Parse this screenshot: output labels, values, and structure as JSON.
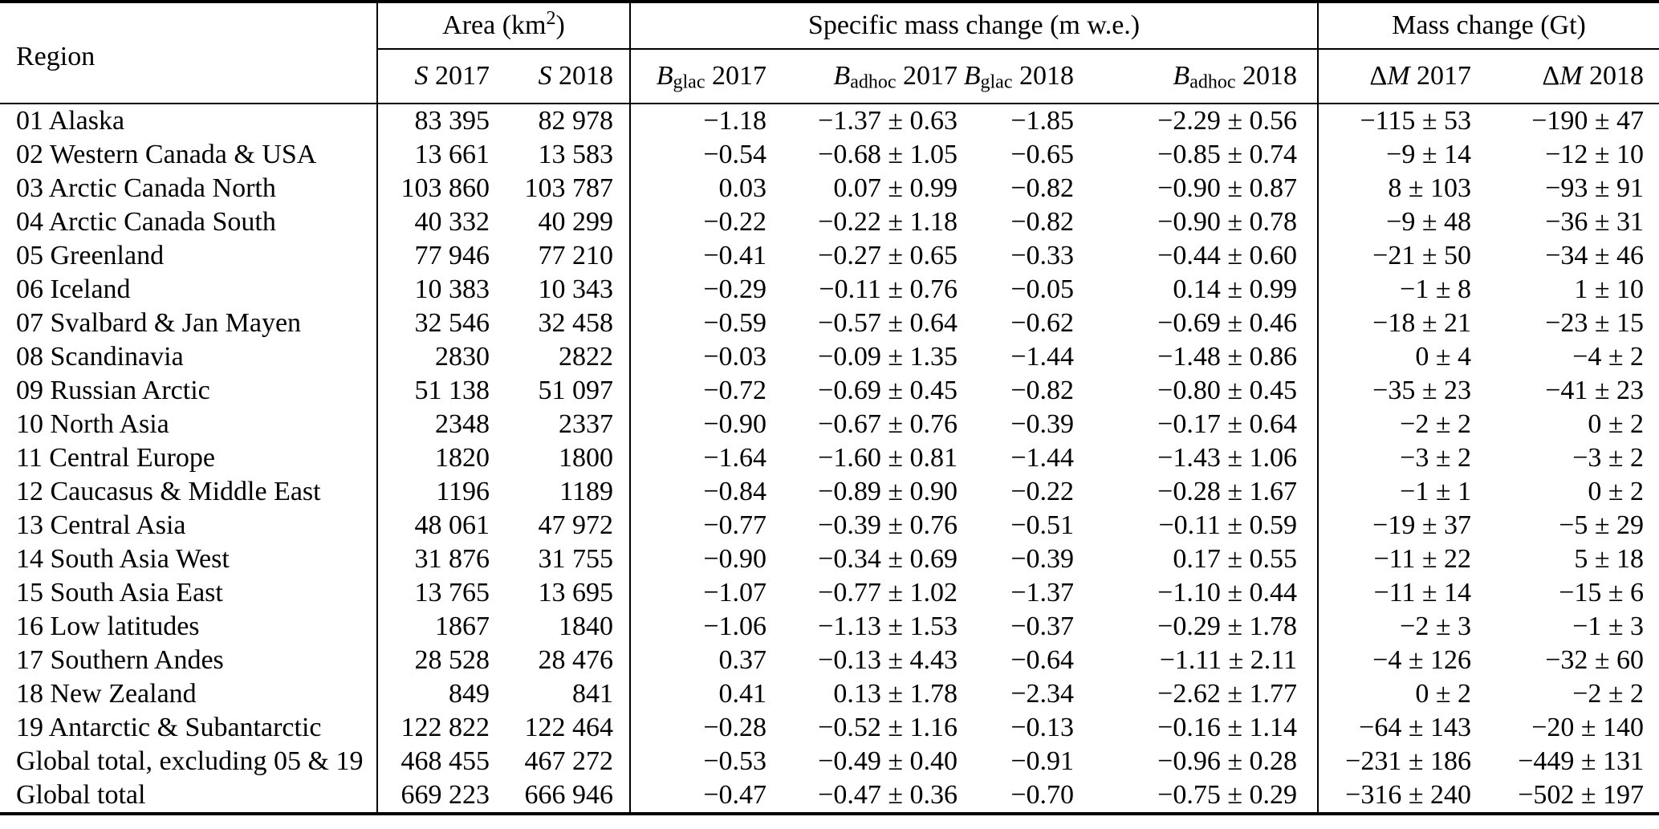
{
  "header": {
    "region": "Region",
    "area_pre": "Area (km",
    "area_sup": "2",
    "area_post": ")",
    "specific": "Specific mass change (m w.e.)",
    "mass": "Mass change (Gt)",
    "cols": [
      {
        "prefix": "",
        "main": "S",
        "sub": "",
        "year": " 2017"
      },
      {
        "prefix": "",
        "main": "S",
        "sub": "",
        "year": " 2018"
      },
      {
        "prefix": "",
        "main": "B",
        "sub": "glac",
        "year": " 2017"
      },
      {
        "prefix": "",
        "main": "B",
        "sub": "adhoc",
        "year": " 2017"
      },
      {
        "prefix": "",
        "main": "B",
        "sub": "glac",
        "year": " 2018"
      },
      {
        "prefix": "",
        "main": "B",
        "sub": "adhoc",
        "year": " 2018"
      },
      {
        "prefix": "Δ",
        "main": "M",
        "sub": "",
        "year": " 2017"
      },
      {
        "prefix": "Δ",
        "main": "M",
        "sub": "",
        "year": " 2018"
      }
    ]
  },
  "column_keys": [
    "region",
    "area-s2017",
    "area-s2018",
    "bglac-2017",
    "badhoc-2017",
    "bglac-2018",
    "badhoc-2018",
    "dm-2017",
    "dm-2018"
  ],
  "rows": [
    [
      "01 Alaska",
      "83 395",
      "82 978",
      "−1.18",
      "−1.37 ± 0.63",
      "−1.85",
      "−2.29 ± 0.56",
      "−115 ± 53",
      "−190 ± 47"
    ],
    [
      "02 Western Canada & USA",
      "13 661",
      "13 583",
      "−0.54",
      "−0.68 ± 1.05",
      "−0.65",
      "−0.85 ± 0.74",
      "−9 ± 14",
      "−12 ± 10"
    ],
    [
      "03 Arctic Canada North",
      "103 860",
      "103 787",
      "0.03",
      "0.07 ± 0.99",
      "−0.82",
      "−0.90 ± 0.87",
      "8 ± 103",
      "−93 ± 91"
    ],
    [
      "04 Arctic Canada South",
      "40 332",
      "40 299",
      "−0.22",
      "−0.22 ± 1.18",
      "−0.82",
      "−0.90 ± 0.78",
      "−9 ± 48",
      "−36 ± 31"
    ],
    [
      "05 Greenland",
      "77 946",
      "77 210",
      "−0.41",
      "−0.27 ± 0.65",
      "−0.33",
      "−0.44 ± 0.60",
      "−21 ± 50",
      "−34 ± 46"
    ],
    [
      "06 Iceland",
      "10 383",
      "10 343",
      "−0.29",
      "−0.11 ± 0.76",
      "−0.05",
      "0.14 ± 0.99",
      "−1 ± 8",
      "1 ± 10"
    ],
    [
      "07 Svalbard & Jan Mayen",
      "32 546",
      "32 458",
      "−0.59",
      "−0.57 ± 0.64",
      "−0.62",
      "−0.69 ± 0.46",
      "−18 ± 21",
      "−23 ± 15"
    ],
    [
      "08 Scandinavia",
      "2830",
      "2822",
      "−0.03",
      "−0.09 ± 1.35",
      "−1.44",
      "−1.48 ± 0.86",
      "0 ± 4",
      "−4 ± 2"
    ],
    [
      "09 Russian Arctic",
      "51 138",
      "51 097",
      "−0.72",
      "−0.69 ± 0.45",
      "−0.82",
      "−0.80 ± 0.45",
      "−35 ± 23",
      "−41 ± 23"
    ],
    [
      "10 North Asia",
      "2348",
      "2337",
      "−0.90",
      "−0.67 ± 0.76",
      "−0.39",
      "−0.17 ± 0.64",
      "−2 ± 2",
      "0 ± 2"
    ],
    [
      "11 Central Europe",
      "1820",
      "1800",
      "−1.64",
      "−1.60 ± 0.81",
      "−1.44",
      "−1.43 ± 1.06",
      "−3 ± 2",
      "−3 ± 2"
    ],
    [
      "12 Caucasus & Middle East",
      "1196",
      "1189",
      "−0.84",
      "−0.89 ± 0.90",
      "−0.22",
      "−0.28 ± 1.67",
      "−1 ± 1",
      "0 ± 2"
    ],
    [
      "13 Central Asia",
      "48 061",
      "47 972",
      "−0.77",
      "−0.39 ± 0.76",
      "−0.51",
      "−0.11 ± 0.59",
      "−19 ± 37",
      "−5 ± 29"
    ],
    [
      "14 South Asia West",
      "31 876",
      "31 755",
      "−0.90",
      "−0.34 ± 0.69",
      "−0.39",
      "0.17 ± 0.55",
      "−11 ± 22",
      "5 ± 18"
    ],
    [
      "15 South Asia East",
      "13 765",
      "13 695",
      "−1.07",
      "−0.77 ± 1.02",
      "−1.37",
      "−1.10 ± 0.44",
      "−11 ± 14",
      "−15 ± 6"
    ],
    [
      "16 Low latitudes",
      "1867",
      "1840",
      "−1.06",
      "−1.13 ± 1.53",
      "−0.37",
      "−0.29 ± 1.78",
      "−2 ± 3",
      "−1 ± 3"
    ],
    [
      "17 Southern Andes",
      "28 528",
      "28 476",
      "0.37",
      "−0.13 ± 4.43",
      "−0.64",
      "−1.11 ± 2.11",
      "−4 ± 126",
      "−32 ± 60"
    ],
    [
      "18 New Zealand",
      "849",
      "841",
      "0.41",
      "0.13 ± 1.78",
      "−2.34",
      "−2.62 ± 1.77",
      "0 ± 2",
      "−2 ± 2"
    ],
    [
      "19 Antarctic & Subantarctic",
      "122 822",
      "122 464",
      "−0.28",
      "−0.52 ± 1.16",
      "−0.13",
      "−0.16 ± 1.14",
      "−64 ± 143",
      "−20 ± 140"
    ],
    [
      "Global total, excluding 05 & 19",
      "468 455",
      "467 272",
      "−0.53",
      "−0.49 ± 0.40",
      "−0.91",
      "−0.96 ± 0.28",
      "−231 ± 186",
      "−449 ± 131"
    ],
    [
      "Global total",
      "669 223",
      "666 946",
      "−0.47",
      "−0.47 ± 0.36",
      "−0.70",
      "−0.75 ± 0.29",
      "−316 ± 240",
      "−502 ± 197"
    ]
  ]
}
